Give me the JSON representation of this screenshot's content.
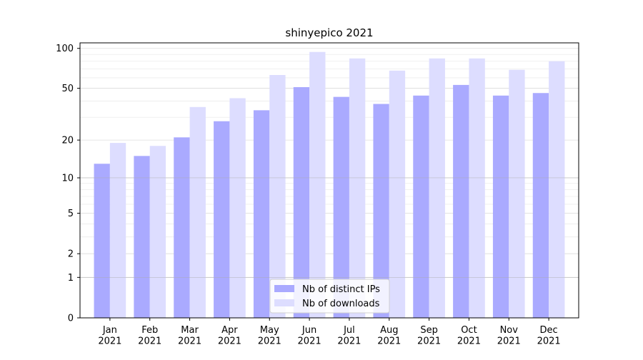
{
  "chart_data": {
    "type": "bar",
    "title": "shinyepico 2021",
    "xlabel": "",
    "ylabel": "",
    "y_scale": "log1p",
    "ylim": [
      0,
      110
    ],
    "y_ticks": [
      0,
      1,
      2,
      5,
      10,
      20,
      50,
      100
    ],
    "grid": true,
    "legend_position": "bottom-center",
    "categories": [
      "Jan\n2021",
      "Feb\n2021",
      "Mar\n2021",
      "Apr\n2021",
      "May\n2021",
      "Jun\n2021",
      "Jul\n2021",
      "Aug\n2021",
      "Sep\n2021",
      "Oct\n2021",
      "Nov\n2021",
      "Dec\n2021"
    ],
    "series": [
      {
        "name": "Nb of distinct IPs",
        "color": "#aaaaff",
        "values": [
          13,
          15,
          21,
          28,
          34,
          51,
          43,
          38,
          44,
          53,
          44,
          46
        ]
      },
      {
        "name": "Nb of downloads",
        "color": "#ddddff",
        "values": [
          19,
          18,
          36,
          42,
          63,
          94,
          84,
          68,
          84,
          84,
          69,
          80
        ]
      }
    ]
  }
}
